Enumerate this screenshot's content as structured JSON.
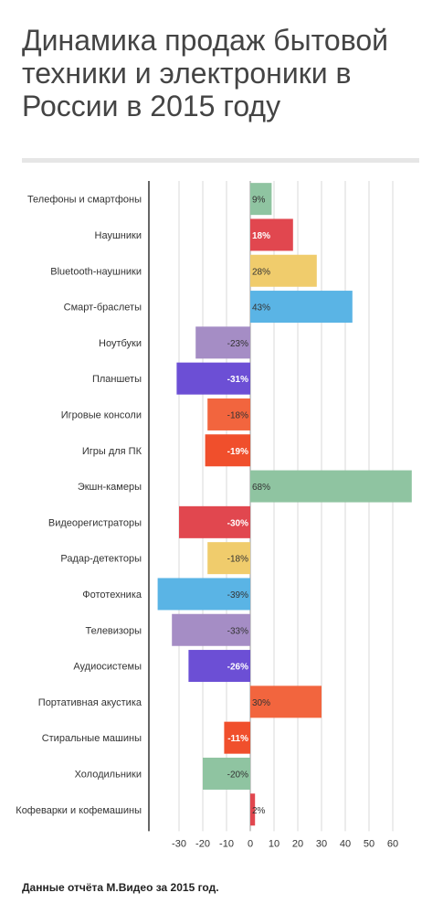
{
  "title": "Динамика продаж бытовой техники и электроники в России в 2015 году",
  "source": "Данные отчёта М.Видео за 2015 год.",
  "chart_data": {
    "type": "bar",
    "orientation": "horizontal",
    "title": "Динамика продаж бытовой техники и электроники в России в 2015 году",
    "xlabel": "",
    "ylabel": "",
    "xlim": [
      -40,
      70
    ],
    "xticks": [
      -30,
      -20,
      -10,
      0,
      10,
      20,
      30,
      40,
      50,
      60
    ],
    "grid": true,
    "value_suffix": "%",
    "categories": [
      "Телефоны и смартфоны",
      "Наушники",
      "Bluetooth-наушники",
      "Смарт-браслеты",
      "Ноутбуки",
      "Планшеты",
      "Игровые консоли",
      "Игры для ПК",
      "Экшн-камеры",
      "Видеорегистраторы",
      "Радар-детекторы",
      "Фототехника",
      "Телевизоры",
      "Аудиосистемы",
      "Портативная акустика",
      "Стиральные машины",
      "Холодильники",
      "Кофеварки и кофемашины"
    ],
    "values": [
      9,
      18,
      28,
      43,
      -23,
      -31,
      -18,
      -19,
      68,
      -30,
      -18,
      -39,
      -33,
      -26,
      30,
      -11,
      -20,
      2
    ],
    "colors": [
      "#8fc4a1",
      "#e1474f",
      "#f0cc6c",
      "#5ab4e5",
      "#a58dc5",
      "#6c4fd5",
      "#f2653e",
      "#f04f2c",
      "#8fc4a1",
      "#e1474f",
      "#f0cc6c",
      "#5ab4e5",
      "#a58dc5",
      "#6c4fd5",
      "#f2653e",
      "#f04f2c",
      "#8fc4a1",
      "#e1474f"
    ],
    "label_colors": [
      "#333333",
      "#ffffff",
      "#333333",
      "#333333",
      "#333333",
      "#ffffff",
      "#333333",
      "#ffffff",
      "#333333",
      "#ffffff",
      "#333333",
      "#333333",
      "#333333",
      "#ffffff",
      "#333333",
      "#ffffff",
      "#333333",
      "#333333"
    ]
  }
}
